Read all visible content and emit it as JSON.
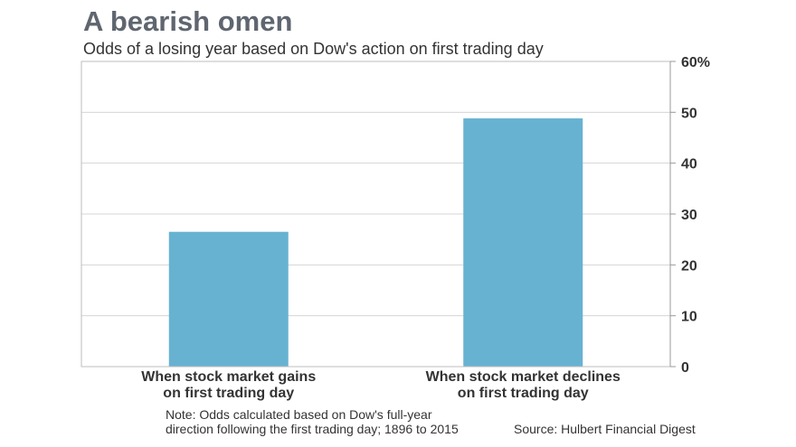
{
  "header": {
    "title": "A bearish omen",
    "subtitle": "Odds of a losing year based on Dow's action on first trading day"
  },
  "footer": {
    "note_line1": "Note: Odds calculated based on Dow's full-year",
    "note_line2": "direction following the first trading day; 1896 to 2015",
    "source": "Source: Hulbert Financial Digest"
  },
  "chart_data": {
    "type": "bar",
    "title": "A bearish omen",
    "subtitle": "Odds of a losing year based on Dow's action on first trading day",
    "categories": [
      [
        "When stock market gains",
        "on first trading day"
      ],
      [
        "When stock market declines",
        "on first trading day"
      ]
    ],
    "values": [
      26.5,
      48.8
    ],
    "ylim": [
      0,
      60
    ],
    "yticks": [
      "0",
      "10",
      "20",
      "30",
      "40",
      "50",
      "60%"
    ],
    "y_axis_side": "right",
    "grid": true,
    "bar_color": "#67b2d1"
  }
}
